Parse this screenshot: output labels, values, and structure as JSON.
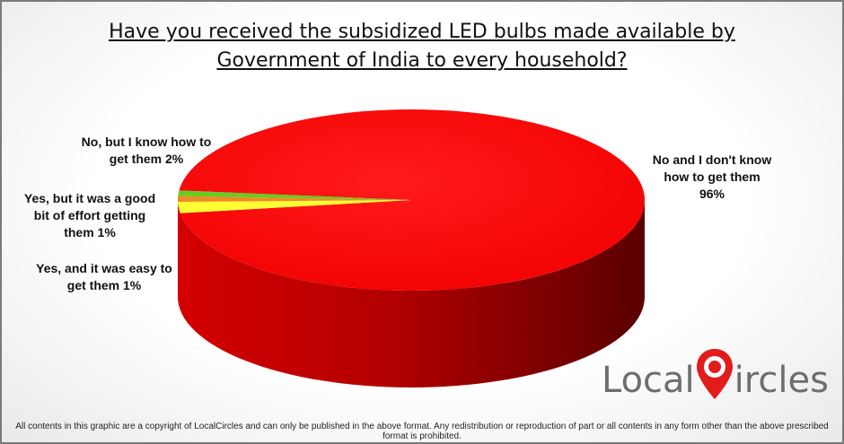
{
  "title_lines": [
    "Have you received the subsidized LED bulbs made available by",
    "Government of India to every household?"
  ],
  "chart_data": {
    "type": "pie",
    "title": "Have you received the subsidized LED bulbs made available by Government of India to every household?",
    "slices": [
      {
        "label": "No and I don't know how to get them",
        "value": 96,
        "color": "#ff0000"
      },
      {
        "label": "No, but I know how to get them",
        "value": 2,
        "color": "#ffff33"
      },
      {
        "label": "Yes, but it was a good bit of effort getting them",
        "value": 1,
        "color": "#f08a24"
      },
      {
        "label": "Yes, and it was easy to get them",
        "value": 1,
        "color": "#66cc22"
      }
    ]
  },
  "labels": {
    "no_dont_know": [
      "No and I don't know",
      "how to get them",
      "96%"
    ],
    "no_know": [
      "No, but I know how to",
      "get them 2%"
    ],
    "yes_effort": [
      "Yes, but it was a good",
      "bit of effort getting",
      "them  1%"
    ],
    "yes_easy": [
      "Yes, and it was easy to",
      "get them  1%"
    ]
  },
  "logo": {
    "text_left": "Local",
    "text_right": "ircles"
  },
  "footer": "All contents in this graphic are a copyright of LocalCircles and can only be published in the above format. Any redistribution or reproduction of part or all contents in any form other than the above prescribed format is prohibited."
}
